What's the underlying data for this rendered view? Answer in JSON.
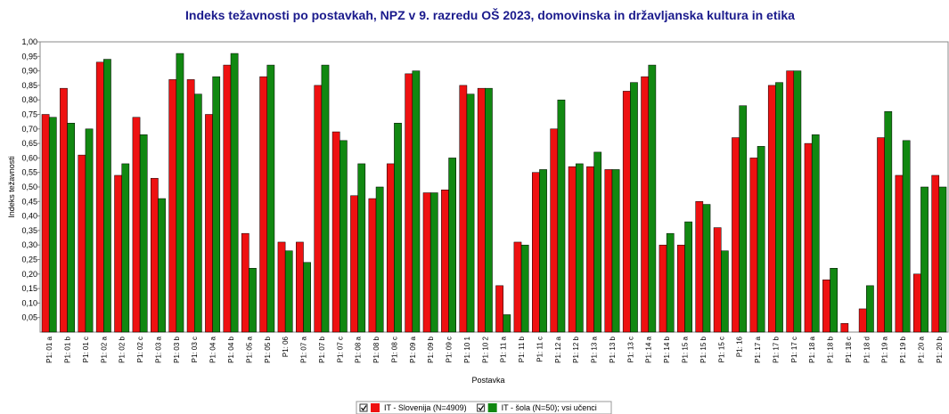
{
  "chart_data": {
    "type": "bar",
    "title": "Indeks težavnosti po postavkah, NPZ v 9. razredu OŠ 2023, domovinska in državljanska kultura in etika",
    "x_label": "Postavka",
    "y_label": "Indeks težavnosti",
    "categories": [
      "P1: 01 a",
      "P1: 01 b",
      "P1: 01 c",
      "P1: 02 a",
      "P1: 02 b",
      "P1: 02 c",
      "P1: 03 a",
      "P1: 03 b",
      "P1: 03 c",
      "P1: 04 a",
      "P1: 04 b",
      "P1: 05 a",
      "P1: 05 b",
      "P1: 06",
      "P1: 07 a",
      "P1: 07 b",
      "P1: 07 c",
      "P1: 08 a",
      "P1: 08 b",
      "P1: 08 c",
      "P1: 09 a",
      "P1: 09 b",
      "P1: 09 c",
      "P1: 10 1",
      "P1: 10 2",
      "P1: 11 a",
      "P1: 11 b",
      "P1: 11 c",
      "P1: 12 a",
      "P1: 12 b",
      "P1: 13 a",
      "P1: 13 b",
      "P1: 13 c",
      "P1: 14 a",
      "P1: 14 b",
      "P1: 15 a",
      "P1: 15 b",
      "P1: 15 c",
      "P1: 16",
      "P1: 17 a",
      "P1: 17 b",
      "P1: 17 c",
      "P1: 18 a",
      "P1: 18 b",
      "P1: 18 c",
      "P1: 18 d",
      "P1: 19 a",
      "P1: 19 b",
      "P1: 20 a",
      "P1: 20 b"
    ],
    "series": [
      {
        "name": "IT - Slovenija (N=4909)",
        "color": "#ee1111",
        "values": [
          0.75,
          0.84,
          0.61,
          0.93,
          0.54,
          0.74,
          0.53,
          0.87,
          0.87,
          0.75,
          0.92,
          0.34,
          0.88,
          0.31,
          0.31,
          0.85,
          0.69,
          0.47,
          0.46,
          0.58,
          0.89,
          0.48,
          0.49,
          0.85,
          0.84,
          0.16,
          0.31,
          0.55,
          0.7,
          0.57,
          0.57,
          0.56,
          0.83,
          0.88,
          0.3,
          0.3,
          0.45,
          0.36,
          0.67,
          0.6,
          0.85,
          0.9,
          0.65,
          0.18,
          0.03,
          0.08,
          0.67,
          0.54,
          0.2,
          0.54
        ]
      },
      {
        "name": "IT - šola (N=50); vsi učenci",
        "color": "#118811",
        "values": [
          0.74,
          0.72,
          0.7,
          0.94,
          0.58,
          0.68,
          0.46,
          0.96,
          0.82,
          0.88,
          0.96,
          0.22,
          0.92,
          0.28,
          0.24,
          0.92,
          0.66,
          0.58,
          0.5,
          0.72,
          0.9,
          0.48,
          0.6,
          0.82,
          0.84,
          0.06,
          0.3,
          0.56,
          0.8,
          0.58,
          0.62,
          0.56,
          0.86,
          0.92,
          0.34,
          0.38,
          0.44,
          0.28,
          0.78,
          0.64,
          0.86,
          0.9,
          0.68,
          0.22,
          null,
          0.16,
          0.76,
          0.66,
          0.5,
          0.5
        ]
      }
    ],
    "ylim": [
      0,
      1
    ],
    "yticks": [
      {
        "value": 0.05,
        "label": "0,05"
      },
      {
        "value": 0.1,
        "label": "0,10"
      },
      {
        "value": 0.15,
        "label": "0,15"
      },
      {
        "value": 0.2,
        "label": "0,20"
      },
      {
        "value": 0.25,
        "label": "0,25"
      },
      {
        "value": 0.3,
        "label": "0,30"
      },
      {
        "value": 0.35,
        "label": "0,35"
      },
      {
        "value": 0.4,
        "label": "0,40"
      },
      {
        "value": 0.45,
        "label": "0,45"
      },
      {
        "value": 0.5,
        "label": "0,50"
      },
      {
        "value": 0.55,
        "label": "0,55"
      },
      {
        "value": 0.6,
        "label": "0,60"
      },
      {
        "value": 0.65,
        "label": "0,65"
      },
      {
        "value": 0.7,
        "label": "0,70"
      },
      {
        "value": 0.75,
        "label": "0,75"
      },
      {
        "value": 0.8,
        "label": "0,80"
      },
      {
        "value": 0.85,
        "label": "0,85"
      },
      {
        "value": 0.9,
        "label": "0,90"
      },
      {
        "value": 0.95,
        "label": "0,95"
      },
      {
        "value": 1.0,
        "label": "1,00"
      }
    ],
    "grid": false
  }
}
